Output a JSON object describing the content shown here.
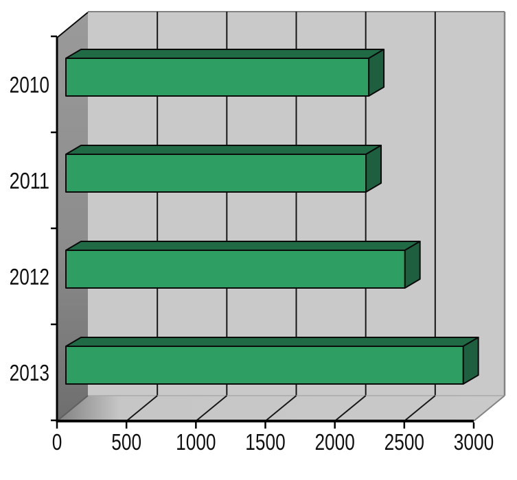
{
  "chart_data": {
    "type": "bar",
    "orientation": "horizontal",
    "projection": "3d",
    "title": "",
    "xlabel": "",
    "ylabel": "",
    "categories": [
      "2010",
      "2011",
      "2012",
      "2013"
    ],
    "values": [
      2180,
      2160,
      2440,
      2860
    ],
    "xlim": [
      0,
      3000
    ],
    "x_ticks": [
      0,
      500,
      1000,
      1500,
      2000,
      2500,
      3000
    ],
    "grid": true,
    "legend": false,
    "colors": {
      "background": "#ffffff",
      "bar_front": "#2f9e62",
      "bar_top": "#206b46",
      "bar_side": "#1d5f3e",
      "bar_outline": "#0a0a0a",
      "back_wall": "#c9c9c9",
      "left_wall_top": "#9a9a9a",
      "left_wall_mid": "#8d8d8d",
      "left_wall_bottom": "#6e6e6e",
      "floor_near_wall": "#858585",
      "floor_main": "#c6c6c6",
      "gridline": "#161616",
      "axis": "#000000",
      "wall_edge": "#828282",
      "wall_floor_edge": "#a9a9a9",
      "label": "#101010"
    }
  }
}
